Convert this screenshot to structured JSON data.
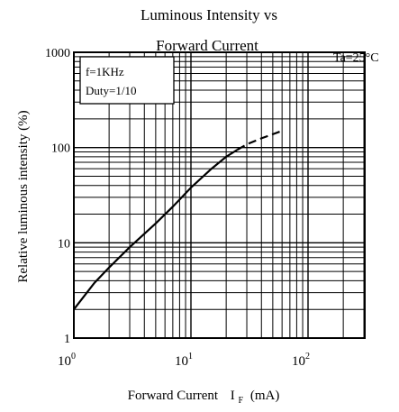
{
  "chart_data": {
    "type": "line",
    "title_line1": "Luminous Intensity vs",
    "title_line2": "Forward Current",
    "condition": "Ta=25°C",
    "xlabel_main": "Forward Current",
    "xlabel_sym": "I",
    "xlabel_sub": "F",
    "xlabel_unit": "(mA)",
    "ylabel": "Relative luminous intensity (%)",
    "x_scale": "log",
    "y_scale": "log",
    "xlim": [
      1,
      400
    ],
    "ylim": [
      1,
      1000
    ],
    "grid": true,
    "x_ticks": [
      {
        "value": 1,
        "base": "10",
        "exp": "0"
      },
      {
        "value": 10,
        "base": "10",
        "exp": "1"
      },
      {
        "value": 100,
        "base": "10",
        "exp": "2"
      }
    ],
    "y_ticks": [
      {
        "value": 1,
        "label": "1"
      },
      {
        "value": 10,
        "label": "10"
      },
      {
        "value": 100,
        "label": "100"
      },
      {
        "value": 1000,
        "label": "1000"
      }
    ],
    "legend_lines": [
      "f=1KHz",
      "Duty=1/10"
    ],
    "legend_position": "top-left",
    "series": [
      {
        "style": "solid",
        "x": [
          1,
          1.5,
          2,
          3,
          5,
          7,
          10,
          15,
          20,
          25
        ],
        "y": [
          2,
          3.8,
          5.5,
          9,
          16,
          24,
          38,
          60,
          80,
          95
        ]
      },
      {
        "style": "dashed",
        "x": [
          25,
          30,
          40,
          50,
          60
        ],
        "y": [
          95,
          108,
          125,
          138,
          150
        ]
      }
    ]
  }
}
